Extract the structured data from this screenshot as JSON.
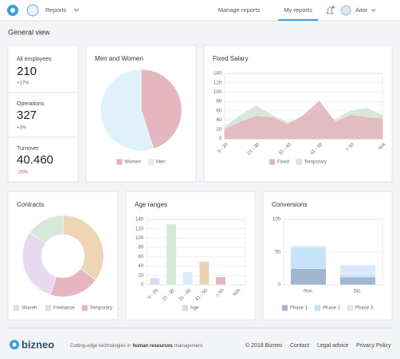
{
  "header": {
    "menu": "Reports",
    "links": [
      "Manage reports",
      "My reports"
    ],
    "user": "Aitor"
  },
  "page_title": "General view",
  "kpis": [
    {
      "label": "All employees",
      "value": "210",
      "change": "+17%"
    },
    {
      "label": "Operations",
      "value": "327",
      "change": "+3%"
    },
    {
      "label": "Turnover",
      "value": "40.460",
      "change": "-26%"
    }
  ],
  "chart_data": [
    {
      "type": "pie",
      "title": "Men and Women",
      "categories": [
        "Women",
        "Men"
      ],
      "values": [
        45,
        55
      ],
      "colors": [
        "#e4b7c0",
        "#dff2fa"
      ]
    },
    {
      "type": "area",
      "title": "Fixed Salary",
      "categories": [
        "0 - 20",
        null,
        "21 - 30",
        null,
        "31 - 40",
        null,
        "41 - 50",
        null,
        "> 50",
        null,
        "N/A"
      ],
      "series": [
        {
          "name": "Fixed",
          "color": "#e4b7c0",
          "values": [
            20,
            35,
            48,
            45,
            30,
            50,
            80,
            35,
            50,
            45,
            42
          ]
        },
        {
          "name": "Temporary",
          "color": "#d3e6d6",
          "values": [
            25,
            50,
            70,
            50,
            35,
            45,
            60,
            40,
            60,
            65,
            50
          ]
        }
      ],
      "ylim": [
        0,
        140
      ],
      "yticks": [
        0,
        20,
        40,
        60,
        80,
        100,
        120,
        140
      ],
      "grid": true
    },
    {
      "type": "donut",
      "title": "Contracts",
      "categories": [
        "Shareh.",
        "Freelance",
        "Temporary",
        null
      ],
      "values": [
        30,
        15,
        20,
        35
      ],
      "colors": [
        "#e6d9f0",
        "#d6e9d9",
        "#e6b6c0",
        "#edd5b6"
      ]
    },
    {
      "type": "bar",
      "title": "Age ranges",
      "categories": [
        "0 - 20",
        "21 - 30",
        "31 - 40",
        "41 - 50",
        "> 50",
        "N/A"
      ],
      "series": [
        {
          "name": "Age",
          "color": "#e2d5ee",
          "colors": [
            "#e2d5ee",
            "#d4e9d8",
            "#d9eefa",
            "#ecd2b4",
            "#e6b6c0",
            "#e6b6c0"
          ],
          "values": [
            15,
            130,
            28,
            50,
            17,
            0
          ]
        }
      ],
      "ylim": [
        0,
        140
      ],
      "yticks": [
        0,
        20,
        40,
        60,
        80,
        100,
        120,
        140
      ],
      "grid": true
    },
    {
      "type": "stacked_bar",
      "title": "Conversions",
      "categories": [
        "Nov.",
        "Dic."
      ],
      "series": [
        {
          "name": "Phase 1",
          "color": "#a2b5d0",
          "values": [
            25,
            12
          ]
        },
        {
          "name": "Phase 2",
          "color": "#c6e4f7",
          "values": [
            33,
            4
          ]
        },
        {
          "name": "Phase 3",
          "color": "#dae7f8",
          "values": [
            2,
            14
          ]
        }
      ],
      "ylim": [
        0,
        100
      ],
      "yticks": [
        0,
        50,
        100
      ],
      "grid": true
    }
  ],
  "footer": {
    "brand": "bizneo",
    "tagline": [
      "Cutting-edge technologies in",
      "human resources",
      "management"
    ],
    "copyright": "© 2018 Bizneo",
    "links": [
      "Contact",
      "Legal advice",
      "Privacy Policy"
    ]
  }
}
